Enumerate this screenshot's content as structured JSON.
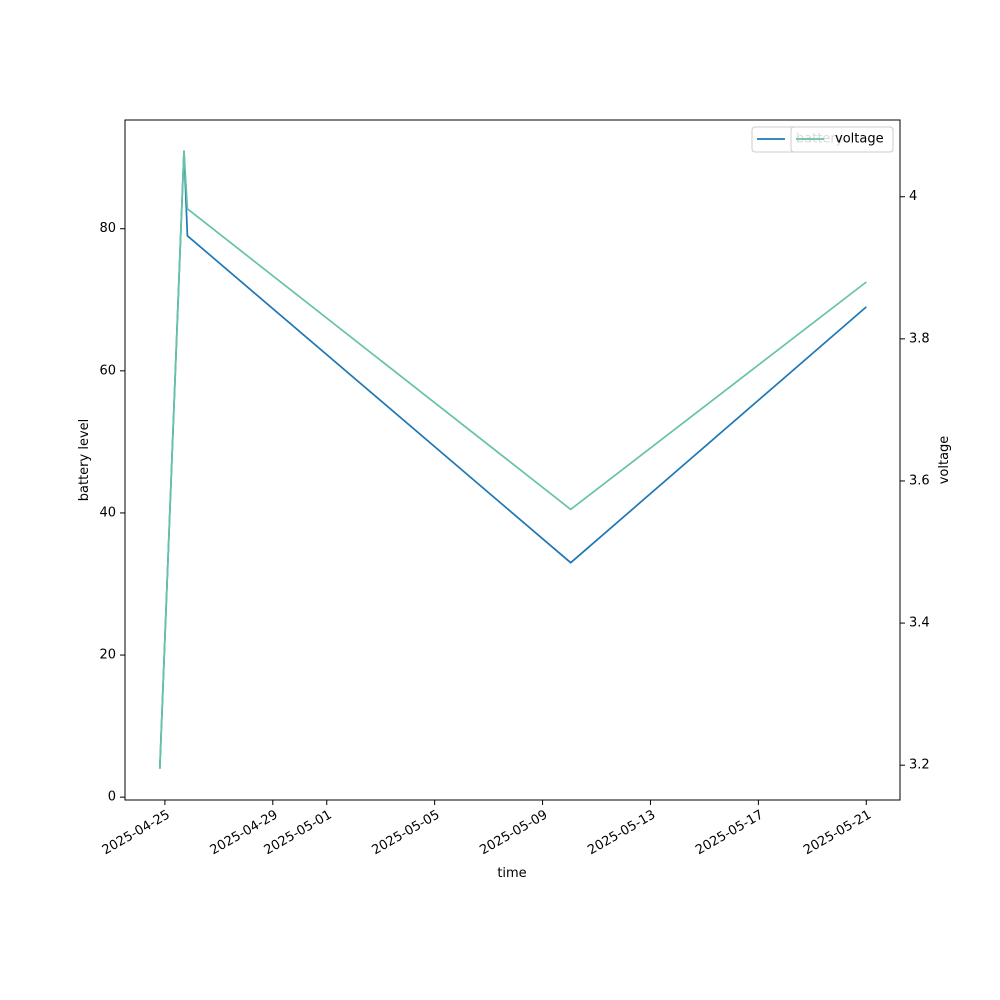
{
  "chart_data": {
    "type": "line",
    "x_label": "time",
    "y_label": "battery level",
    "y2_label": "voltage",
    "x": [
      "2025-04-24T19:30:00Z",
      "2025-04-25T17:00:00Z",
      "2025-04-25T20:00:00Z",
      "2025-05-10T01:00:00Z",
      "2025-05-21T00:00:00Z"
    ],
    "series": [
      {
        "name": "battery",
        "color": "#1f77b4",
        "values": [
          4,
          91,
          79,
          33,
          69
        ]
      },
      {
        "name": "voltage",
        "color": "#66c2a5",
        "axis": "y2",
        "values": [
          3.195,
          4.065,
          3.983,
          3.56,
          3.88
        ]
      }
    ],
    "xlim": [
      "2025-04-23T12:30:00Z",
      "2025-05-22T06:00:00Z"
    ],
    "xticks": [
      "2025-04-25",
      "2025-04-29",
      "2025-05-01",
      "2025-05-05",
      "2025-05-09",
      "2025-05-13",
      "2025-05-17",
      "2025-05-21"
    ],
    "ylim": [
      -0.4,
      95.3
    ],
    "yticks": [
      0,
      20,
      40,
      60,
      80
    ],
    "y2lim": [
      3.151,
      4.108
    ],
    "y2ticks": [
      3.2,
      3.4,
      3.6,
      3.8,
      4.0
    ],
    "legend": "upper right"
  }
}
